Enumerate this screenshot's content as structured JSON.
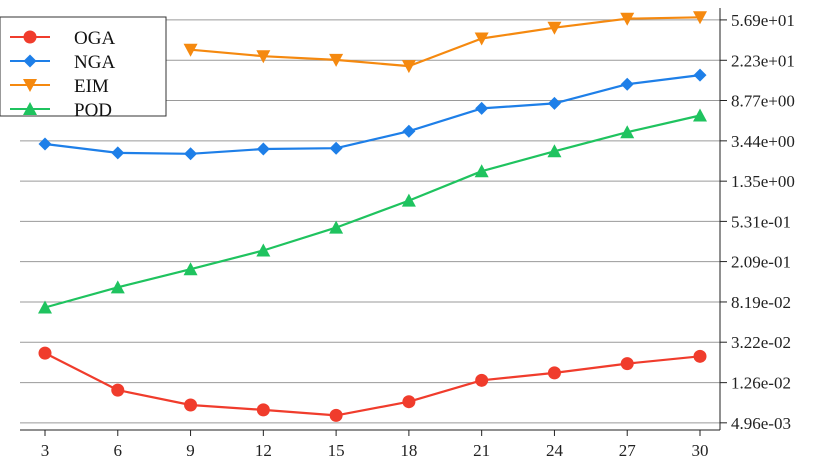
{
  "chart_data": {
    "type": "line",
    "title": "",
    "xlabel": "",
    "ylabel": "",
    "y_scale": "log",
    "y_axis_side": "right",
    "grid": "horizontal",
    "legend_position": "top-left",
    "x": [
      3,
      6,
      9,
      12,
      15,
      18,
      21,
      24,
      27,
      30
    ],
    "x_tick_labels": [
      "3",
      "6",
      "9",
      "12",
      "15",
      "18",
      "21",
      "24",
      "27",
      "30"
    ],
    "y_ticks": [
      0.00496,
      0.0126,
      0.0322,
      0.0819,
      0.209,
      0.531,
      1.35,
      3.44,
      8.77,
      22.3,
      56.9
    ],
    "y_tick_labels": [
      "4.96e-03",
      "1.26e-02",
      "3.22e-02",
      "8.19e-02",
      "2.09e-01",
      "5.31e-01",
      "1.35e+00",
      "3.44e+00",
      "8.77e+00",
      "2.23e+01",
      "5.69e+01"
    ],
    "ylim": [
      0.0042,
      75
    ],
    "series": [
      {
        "name": "OGA",
        "color": "#f03c2c",
        "marker": "circle",
        "values": [
          0.025,
          0.0106,
          0.0075,
          0.0067,
          0.0059,
          0.0081,
          0.0133,
          0.0158,
          0.0196,
          0.0232
        ]
      },
      {
        "name": "NGA",
        "color": "#1e7fe8",
        "marker": "diamond",
        "values": [
          3.2,
          2.6,
          2.55,
          2.85,
          2.9,
          4.3,
          7.3,
          8.2,
          12.8,
          15.8
        ]
      },
      {
        "name": "EIM",
        "color": "#f5890f",
        "marker": "triangle-down",
        "values": [
          null,
          null,
          28.5,
          24.5,
          22.5,
          19.5,
          37.0,
          47.5,
          58.5,
          60.5
        ]
      },
      {
        "name": "POD",
        "color": "#1fc35f",
        "marker": "triangle-up",
        "values": [
          0.072,
          0.115,
          0.175,
          0.27,
          0.46,
          0.86,
          1.7,
          2.7,
          4.2,
          6.2
        ]
      }
    ]
  }
}
